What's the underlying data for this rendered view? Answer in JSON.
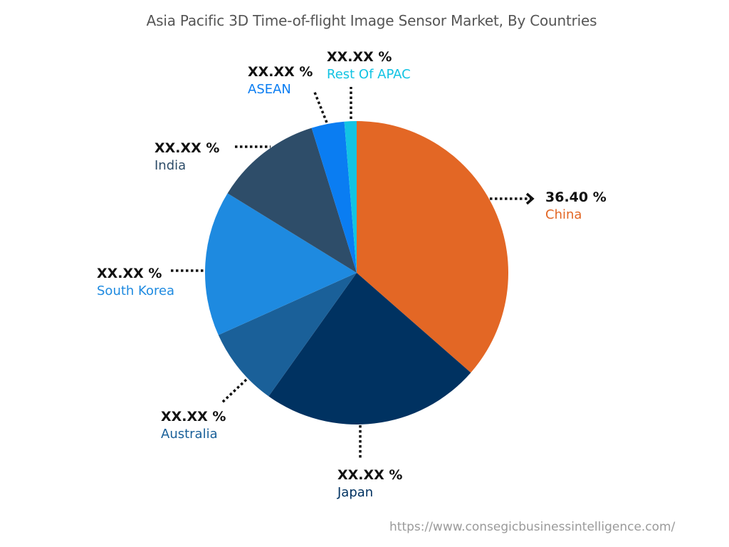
{
  "chart_data": {
    "type": "pie",
    "title": "Asia Pacific 3D Time-of-flight Image Sensor Market, By Countries",
    "categories": [
      "China",
      "Japan",
      "Australia",
      "South Korea",
      "India",
      "ASEAN",
      "Rest Of APAC"
    ],
    "values": [
      36.4,
      23.4,
      8.4,
      15.5,
      11.4,
      3.5,
      1.3
    ],
    "labels": [
      "36.40 %",
      "XX.XX %",
      "XX.XX %",
      "XX.XX %",
      "XX.XX %",
      "XX.XX %",
      "XX.XX %"
    ],
    "colors": [
      "#E36725",
      "#003261",
      "#1A6099",
      "#1E8AE0",
      "#2E4D69",
      "#0A7DF2",
      "#12C3E3"
    ],
    "start_angle": "12 o'clock, clockwise",
    "legend": "none (callout labels)"
  },
  "title": "Asia Pacific 3D Time-of-flight Image Sensor Market, By Countries",
  "callouts": {
    "china": {
      "value": "36.40 %",
      "name": "China"
    },
    "japan": {
      "value": "XX.XX %",
      "name": "Japan"
    },
    "australia": {
      "value": "XX.XX %",
      "name": "Australia"
    },
    "south_korea": {
      "value": "XX.XX %",
      "name": "South Korea"
    },
    "india": {
      "value": "XX.XX %",
      "name": "India"
    },
    "asean": {
      "value": "XX.XX %",
      "name": "ASEAN"
    },
    "rest_apac": {
      "value": "XX.XX %",
      "name": "Rest Of APAC"
    }
  },
  "source": "https://www.consegicbusinessintelligence.com/"
}
